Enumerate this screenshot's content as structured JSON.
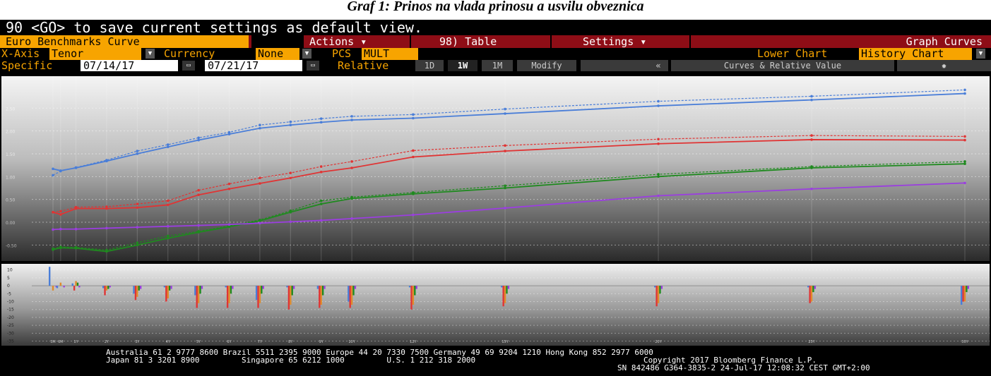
{
  "caption": "Graf 1: Prinos na vlada prinosu a usvilu obveznica",
  "cmdline": "90 <GO> to save current settings as default view.",
  "menu": {
    "title": "Euro Benchmarks Curve",
    "actions": "Actions",
    "table": "98) Table",
    "settings": "Settings",
    "graph_curves": "Graph Curves"
  },
  "row2": {
    "xaxis_label": "X-Axis",
    "xaxis_value": "Tenor",
    "currency_label": "Currency",
    "currency_value": "None",
    "pcs_label": "PCS",
    "pcs_value": "MULT",
    "lower_chart_label": "Lower Chart",
    "lower_chart_value": "History Chart"
  },
  "row3": {
    "specific_label": "Specific",
    "date_from": "07/14/17",
    "date_to": "07/21/17",
    "relative_label": "Relative",
    "btn_1d": "1D",
    "btn_1w": "1W",
    "btn_1m": "1M",
    "btn_modify": "Modify",
    "collapse": "«",
    "curves_rv": "Curves & Relative Value",
    "gear": "gear-icon"
  },
  "chart_data": {
    "type": "line",
    "x": [
      "3M",
      "6M",
      "1Y",
      "2Y",
      "3Y",
      "4Y",
      "5Y",
      "6Y",
      "7Y",
      "8Y",
      "9Y",
      "10Y",
      "12Y",
      "15Y",
      "20Y",
      "25Y",
      "30Y"
    ],
    "x_positions": [
      0.25,
      0.5,
      1,
      2,
      3,
      4,
      5,
      6,
      7,
      8,
      9,
      10,
      12,
      15,
      20,
      25,
      30
    ],
    "yticks": [
      "2.50",
      "2.00",
      "1.50",
      "1.00",
      "0.50",
      "0.00",
      "-0.50"
    ],
    "ylim": [
      -0.85,
      3.2
    ],
    "colors": {
      "blue": "#4a7ed8",
      "red": "#e03434",
      "green": "#1f8a1f",
      "purple": "#9b3ee0",
      "orange": "#e08a2a"
    },
    "series": [
      {
        "color": "blue",
        "dashed": true,
        "values": [
          1.03,
          1.12,
          1.2,
          1.36,
          1.56,
          1.7,
          1.85,
          1.97,
          2.13,
          2.2,
          2.27,
          2.32,
          2.36,
          2.48,
          2.65,
          2.76,
          2.9
        ]
      },
      {
        "color": "blue",
        "dashed": false,
        "values": [
          1.17,
          1.13,
          1.19,
          1.34,
          1.5,
          1.65,
          1.8,
          1.93,
          2.06,
          2.13,
          2.19,
          2.24,
          2.28,
          2.38,
          2.55,
          2.68,
          2.82
        ]
      },
      {
        "color": "red",
        "dashed": true,
        "values": [
          0.22,
          0.24,
          0.33,
          0.34,
          0.4,
          0.47,
          0.7,
          0.84,
          0.97,
          1.08,
          1.22,
          1.33,
          1.57,
          1.68,
          1.82,
          1.9,
          1.88
        ]
      },
      {
        "color": "red",
        "dashed": false,
        "values": [
          0.22,
          0.17,
          0.3,
          0.3,
          0.32,
          0.38,
          0.6,
          0.73,
          0.85,
          0.97,
          1.1,
          1.19,
          1.43,
          1.56,
          1.72,
          1.81,
          1.8
        ]
      },
      {
        "color": "green",
        "dashed": true,
        "values": [
          -0.58,
          -0.54,
          -0.55,
          -0.61,
          -0.45,
          -0.3,
          -0.2,
          -0.08,
          0.05,
          0.25,
          0.47,
          0.55,
          0.65,
          0.8,
          1.05,
          1.22,
          1.33
        ]
      },
      {
        "color": "green",
        "dashed": false,
        "values": [
          -0.6,
          -0.56,
          -0.57,
          -0.64,
          -0.5,
          -0.35,
          -0.22,
          -0.1,
          0.03,
          0.22,
          0.4,
          0.52,
          0.62,
          0.75,
          1.0,
          1.19,
          1.28
        ]
      },
      {
        "color": "purple",
        "dashed": false,
        "values": [
          -0.16,
          -0.15,
          -0.15,
          -0.13,
          -0.11,
          -0.09,
          -0.07,
          -0.05,
          -0.02,
          0.01,
          0.04,
          0.08,
          0.16,
          0.31,
          0.58,
          0.73,
          0.86
        ]
      }
    ],
    "lower": {
      "yticks": [
        "10",
        "5",
        "0",
        "-5",
        "-10",
        "-15",
        "-20",
        "-25",
        "-30",
        "-35"
      ],
      "ylim": [
        -37,
        13
      ],
      "bars": {
        "blue": [
          12,
          -1.5,
          1.5,
          -1.5,
          -5,
          -1,
          -6,
          -1,
          -9,
          -1,
          -2,
          -10,
          -1,
          -1,
          -1,
          -1,
          -12
        ],
        "red": [
          0,
          0,
          -3,
          -6,
          -9,
          -10,
          -14,
          -14,
          -14,
          -15,
          -14,
          -14,
          -15,
          -13,
          -13,
          -11,
          -10
        ],
        "orange": [
          -3,
          2,
          3,
          -3,
          -7,
          -8,
          -11,
          -11,
          -11,
          -12,
          -12,
          -12,
          -12,
          -11,
          -11,
          -10,
          -10
        ],
        "green": [
          0,
          0,
          2,
          -2,
          -3,
          -3,
          -5,
          -5,
          -5,
          -6,
          -6,
          -6,
          -6,
          -5,
          -5,
          -4,
          -4
        ],
        "purple": [
          -1,
          -1,
          -1,
          -1,
          -2,
          -2,
          -2,
          -2,
          -2,
          -2,
          -2,
          -2,
          -2,
          -2,
          -2,
          -2,
          -2
        ]
      }
    }
  },
  "footer": {
    "line1": "Australia 61 2 9777 8600 Brazil 5511 2395 9000 Europe 44 20 7330 7500 Germany 49 69 9204 1210 Hong Kong 852 2977 6000",
    "line2a": "Japan 81 3 3201 8900         Singapore 65 6212 1000         U.S. 1 212 318 2000",
    "line2b": "Copyright 2017 Bloomberg Finance L.P.",
    "line3": "SN 842486 G364-3835-2 24-Jul-17 12:08:32 CEST GMT+2:00"
  }
}
